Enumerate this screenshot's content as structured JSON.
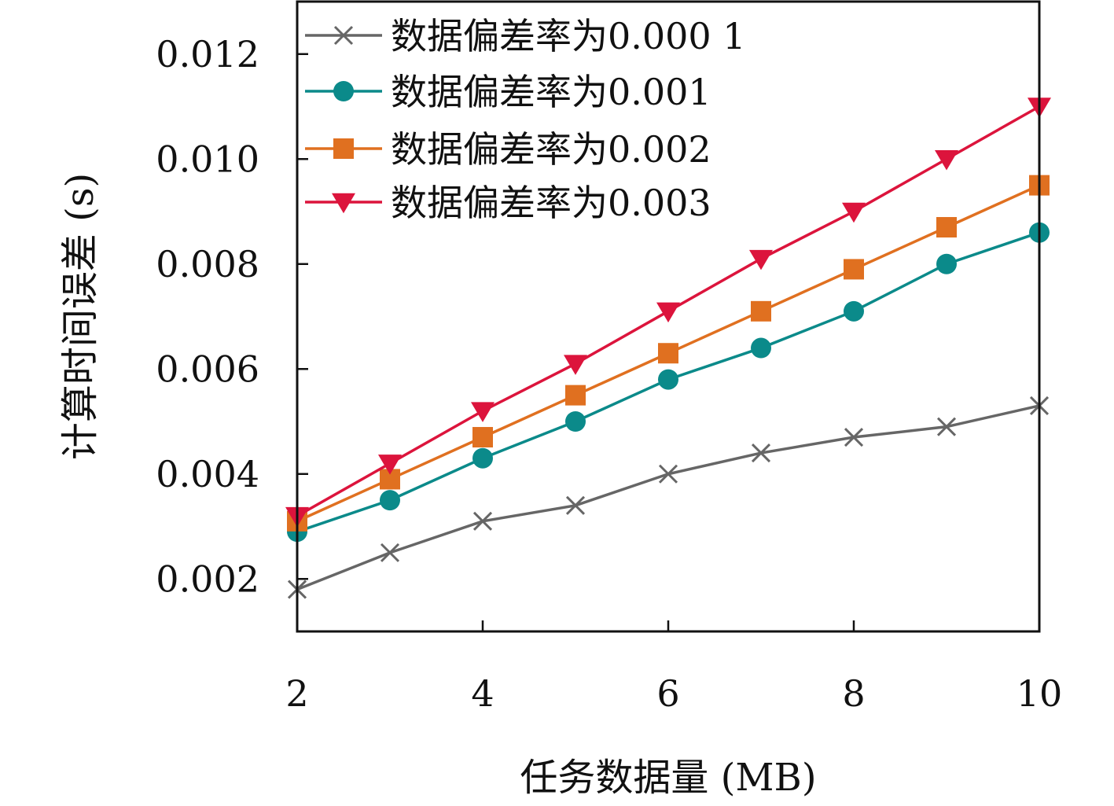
{
  "chart_data": {
    "type": "line",
    "title": "",
    "xlabel": "任务数据量 (MB)",
    "ylabel": "计算时间误差 (s)",
    "xlim": [
      2,
      10
    ],
    "ylim": [
      0.001,
      0.013
    ],
    "x_ticks": [
      2,
      4,
      6,
      8,
      10
    ],
    "x_tick_labels": [
      "2",
      "4",
      "6",
      "8",
      "10"
    ],
    "y_ticks": [
      0.002,
      0.004,
      0.006,
      0.008,
      0.01,
      0.012
    ],
    "y_tick_labels": [
      "0.002",
      "0.004",
      "0.006",
      "0.008",
      "0.010",
      "0.012"
    ],
    "grid": false,
    "legend_position": "top-left",
    "x": [
      2,
      3,
      4,
      5,
      6,
      7,
      8,
      9,
      10
    ],
    "series": [
      {
        "name": "数据偏差率为0.000 1",
        "color": "#666666",
        "marker": "x",
        "values": [
          0.0018,
          0.0025,
          0.0031,
          0.0034,
          0.004,
          0.0044,
          0.0047,
          0.0049,
          0.0053
        ]
      },
      {
        "name": "数据偏差率为0.001",
        "color": "#0b8a8a",
        "marker": "circle",
        "values": [
          0.0029,
          0.0035,
          0.0043,
          0.005,
          0.0058,
          0.0064,
          0.0071,
          0.008,
          0.0086
        ]
      },
      {
        "name": "数据偏差率为0.002",
        "color": "#e07020",
        "marker": "square",
        "values": [
          0.0031,
          0.0039,
          0.0047,
          0.0055,
          0.0063,
          0.0071,
          0.0079,
          0.0087,
          0.0095
        ]
      },
      {
        "name": "数据偏差率为0.003",
        "color": "#dc143c",
        "marker": "triangle-down",
        "values": [
          0.0032,
          0.0042,
          0.0052,
          0.0061,
          0.0071,
          0.0081,
          0.009,
          0.01,
          0.011
        ]
      }
    ]
  }
}
